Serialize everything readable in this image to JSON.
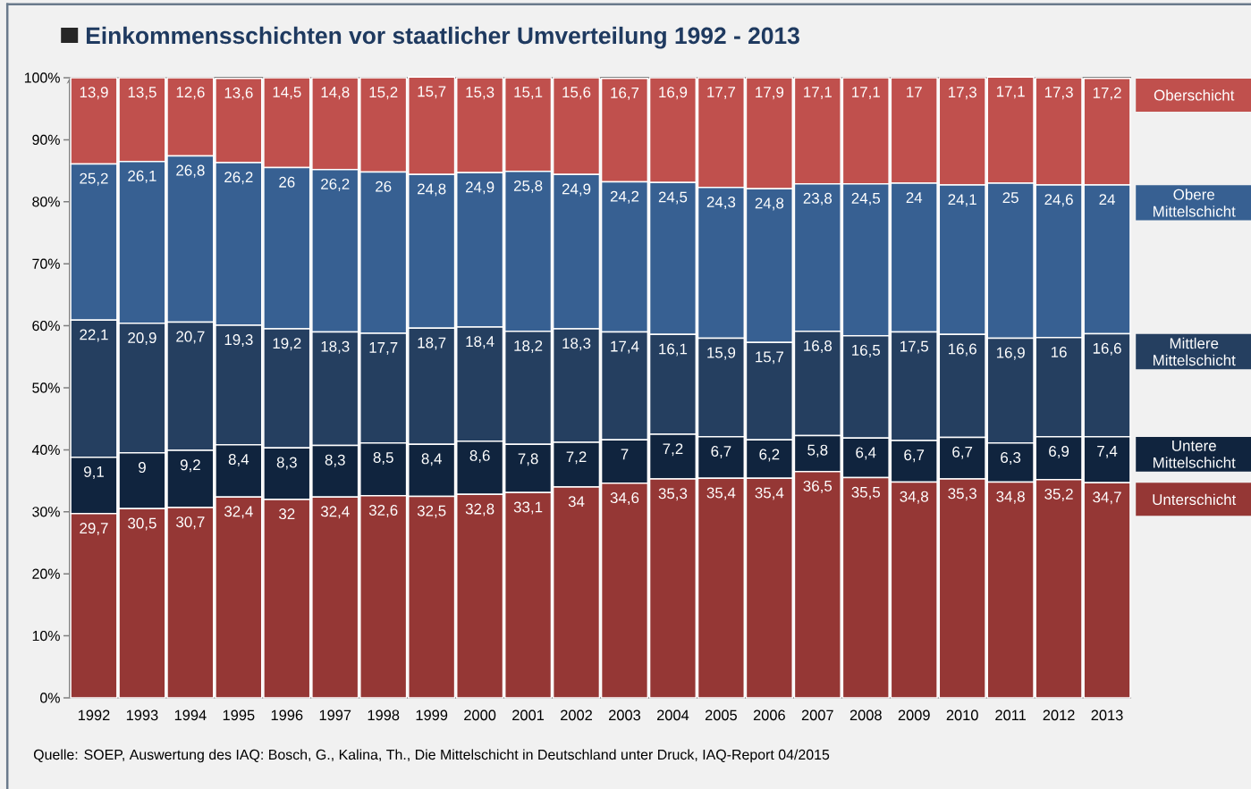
{
  "chart_data": {
    "type": "bar",
    "stacked": true,
    "title": "Einkommensschichten vor staatlicher Umverteilung 1992 - 2013",
    "categories": [
      "1992",
      "1993",
      "1994",
      "1995",
      "1996",
      "1997",
      "1998",
      "1999",
      "2000",
      "2001",
      "2002",
      "2003",
      "2004",
      "2005",
      "2006",
      "2007",
      "2008",
      "2009",
      "2010",
      "2011",
      "2012",
      "2013"
    ],
    "series": [
      {
        "name": "Unterschicht",
        "color": "#953735",
        "values": [
          29.7,
          30.5,
          30.7,
          32.4,
          32,
          32.4,
          32.6,
          32.5,
          32.8,
          33.1,
          34,
          34.6,
          35.3,
          35.4,
          35.4,
          36.5,
          35.5,
          34.8,
          35.3,
          34.8,
          35.2,
          34.7
        ],
        "value_labels": [
          "29,7",
          "30,5",
          "30,7",
          "32,4",
          "32",
          "32,4",
          "32,6",
          "32,5",
          "32,8",
          "33,1",
          "34",
          "34,6",
          "35,3",
          "35,4",
          "35,4",
          "36,5",
          "35,5",
          "34,8",
          "35,3",
          "34,8",
          "35,2",
          "34,7"
        ]
      },
      {
        "name": "Untere Mittelschicht",
        "color": "#10243e",
        "values": [
          9.1,
          9,
          9.2,
          8.4,
          8.3,
          8.3,
          8.5,
          8.4,
          8.6,
          7.8,
          7.2,
          7,
          7.2,
          6.7,
          6.2,
          5.8,
          6.4,
          6.7,
          6.7,
          6.3,
          6.9,
          7.4
        ],
        "value_labels": [
          "9,1",
          "9",
          "9,2",
          "8,4",
          "8,3",
          "8,3",
          "8,5",
          "8,4",
          "8,6",
          "7,8",
          "7,2",
          "7",
          "7,2",
          "6,7",
          "6,2",
          "5,8",
          "6,4",
          "6,7",
          "6,7",
          "6,3",
          "6,9",
          "7,4"
        ]
      },
      {
        "name": "Mittlere Mittelschicht",
        "color": "#253f60",
        "values": [
          22.1,
          20.9,
          20.7,
          19.3,
          19.2,
          18.3,
          17.7,
          18.7,
          18.4,
          18.2,
          18.3,
          17.4,
          16.1,
          15.9,
          15.7,
          16.8,
          16.5,
          17.5,
          16.6,
          16.9,
          16,
          16.6
        ],
        "value_labels": [
          "22,1",
          "20,9",
          "20,7",
          "19,3",
          "19,2",
          "18,3",
          "17,7",
          "18,7",
          "18,4",
          "18,2",
          "18,3",
          "17,4",
          "16,1",
          "15,9",
          "15,7",
          "16,8",
          "16,5",
          "17,5",
          "16,6",
          "16,9",
          "16",
          "16,6"
        ]
      },
      {
        "name": "Obere Mittelschicht",
        "color": "#376092",
        "values": [
          25.2,
          26.1,
          26.8,
          26.2,
          26,
          26.2,
          26,
          24.8,
          24.9,
          25.8,
          24.9,
          24.2,
          24.5,
          24.3,
          24.8,
          23.8,
          24.5,
          24,
          24.1,
          25,
          24.6,
          24
        ],
        "value_labels": [
          "25,2",
          "26,1",
          "26,8",
          "26,2",
          "26",
          "26,2",
          "26",
          "24,8",
          "24,9",
          "25,8",
          "24,9",
          "24,2",
          "24,5",
          "24,3",
          "24,8",
          "23,8",
          "24,5",
          "24",
          "24,1",
          "25",
          "24,6",
          "24"
        ]
      },
      {
        "name": "Oberschicht",
        "color": "#c0504d",
        "values": [
          13.9,
          13.5,
          12.6,
          13.6,
          14.5,
          14.8,
          15.2,
          15.7,
          15.3,
          15.1,
          15.6,
          16.7,
          16.9,
          17.7,
          17.9,
          17.1,
          17.1,
          17,
          17.3,
          17.1,
          17.3,
          17.2
        ],
        "value_labels": [
          "13,9",
          "13,5",
          "12,6",
          "13,6",
          "14,5",
          "14,8",
          "15,2",
          "15,7",
          "15,3",
          "15,1",
          "15,6",
          "16,7",
          "16,9",
          "17,7",
          "17,9",
          "17,1",
          "17,1",
          "17",
          "17,3",
          "17,1",
          "17,3",
          "17,2"
        ]
      }
    ],
    "ylim": [
      0,
      100
    ],
    "yticks": [
      {
        "value": 0,
        "label": "0%"
      },
      {
        "value": 10,
        "label": "10%"
      },
      {
        "value": 20,
        "label": "20%"
      },
      {
        "value": 30,
        "label": "30%"
      },
      {
        "value": 40,
        "label": "40%"
      },
      {
        "value": 50,
        "label": "50%"
      },
      {
        "value": 60,
        "label": "60%"
      },
      {
        "value": 70,
        "label": "70%"
      },
      {
        "value": 80,
        "label": "80%"
      },
      {
        "value": 90,
        "label": "90%"
      },
      {
        "value": 100,
        "label": "100%"
      }
    ],
    "legend": "right",
    "annotations": [
      "Quelle: SOEP, Auswertung des IAQ: Bosch, G., Kalina, Th., Die Mittelschicht in Deutschland unter Druck, IAQ-Report  04/2015"
    ]
  }
}
